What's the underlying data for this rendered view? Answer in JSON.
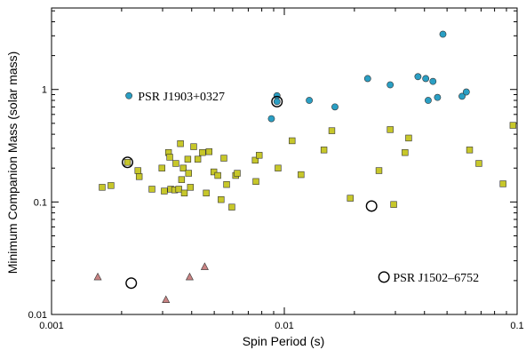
{
  "chart_data": {
    "type": "scatter",
    "xlabel": "Spin Period (s)",
    "ylabel": "Minimum Companion Mass (solar mass)",
    "xscale": "log",
    "yscale": "log",
    "xlim": [
      0.001,
      0.1
    ],
    "ylim": [
      0.01,
      5.3
    ],
    "x_ticks": [
      0.001,
      0.01,
      0.1
    ],
    "x_tick_labels": [
      "0.001",
      "0.01",
      "0.1"
    ],
    "y_ticks": [
      0.01,
      0.1,
      1
    ],
    "y_tick_labels": [
      "0.01",
      "0.1",
      "1"
    ],
    "grid": false,
    "colors": {
      "circle": "#2a9fc4",
      "square": "#c7c72a",
      "triangle": "#c98383",
      "edge": "#333333"
    },
    "series": [
      {
        "marker": "circle",
        "points": [
          [
            0.00215,
            0.88
          ],
          [
            0.0088,
            0.55
          ],
          [
            0.0093,
            0.88
          ],
          [
            0.0093,
            0.78
          ],
          [
            0.0128,
            0.8
          ],
          [
            0.0165,
            0.7
          ],
          [
            0.0228,
            1.25
          ],
          [
            0.0285,
            1.1
          ],
          [
            0.0375,
            1.3
          ],
          [
            0.0405,
            1.25
          ],
          [
            0.0415,
            0.8
          ],
          [
            0.0435,
            1.18
          ],
          [
            0.0455,
            0.85
          ],
          [
            0.048,
            3.1
          ],
          [
            0.058,
            0.87
          ],
          [
            0.0605,
            0.95
          ]
        ]
      },
      {
        "marker": "square",
        "points": [
          [
            0.00165,
            0.135
          ],
          [
            0.0018,
            0.14
          ],
          [
            0.00212,
            0.225
          ],
          [
            0.00235,
            0.19
          ],
          [
            0.00238,
            0.168
          ],
          [
            0.0027,
            0.13
          ],
          [
            0.00298,
            0.2
          ],
          [
            0.00305,
            0.125
          ],
          [
            0.00318,
            0.275
          ],
          [
            0.00322,
            0.25
          ],
          [
            0.00325,
            0.13
          ],
          [
            0.00338,
            0.128
          ],
          [
            0.00342,
            0.22
          ],
          [
            0.00352,
            0.13
          ],
          [
            0.00358,
            0.33
          ],
          [
            0.00362,
            0.158
          ],
          [
            0.00368,
            0.2
          ],
          [
            0.00372,
            0.12
          ],
          [
            0.00385,
            0.24
          ],
          [
            0.00388,
            0.18
          ],
          [
            0.00395,
            0.135
          ],
          [
            0.00408,
            0.31
          ],
          [
            0.00425,
            0.24
          ],
          [
            0.00445,
            0.275
          ],
          [
            0.00462,
            0.12
          ],
          [
            0.00475,
            0.28
          ],
          [
            0.00498,
            0.185
          ],
          [
            0.00518,
            0.172
          ],
          [
            0.00535,
            0.105
          ],
          [
            0.0055,
            0.245
          ],
          [
            0.00565,
            0.143
          ],
          [
            0.00595,
            0.09
          ],
          [
            0.00618,
            0.172
          ],
          [
            0.00628,
            0.18
          ],
          [
            0.0075,
            0.235
          ],
          [
            0.00755,
            0.152
          ],
          [
            0.0078,
            0.26
          ],
          [
            0.0094,
            0.2
          ],
          [
            0.0108,
            0.35
          ],
          [
            0.0118,
            0.175
          ],
          [
            0.0148,
            0.29
          ],
          [
            0.016,
            0.43
          ],
          [
            0.0192,
            0.108
          ],
          [
            0.0255,
            0.19
          ],
          [
            0.0285,
            0.44
          ],
          [
            0.0295,
            0.095
          ],
          [
            0.033,
            0.275
          ],
          [
            0.0342,
            0.37
          ],
          [
            0.0625,
            0.29
          ],
          [
            0.0685,
            0.22
          ],
          [
            0.087,
            0.145
          ],
          [
            0.096,
            0.48
          ]
        ]
      },
      {
        "marker": "triangle",
        "points": [
          [
            0.00158,
            0.0215
          ],
          [
            0.0031,
            0.0135
          ],
          [
            0.00392,
            0.0215
          ],
          [
            0.00455,
            0.0265
          ]
        ]
      }
    ],
    "ringed_points": [
      [
        0.00212,
        0.225
      ],
      [
        0.0093,
        0.78
      ],
      [
        0.0237,
        0.092
      ],
      [
        0.0022,
        0.019
      ],
      [
        0.0268,
        0.0215
      ]
    ],
    "annotations": [
      {
        "text": "PSR J1903+0327",
        "x": 0.00235,
        "y": 0.88
      },
      {
        "text": "PSR J1502–6752",
        "x": 0.0293,
        "y": 0.0215
      }
    ]
  }
}
